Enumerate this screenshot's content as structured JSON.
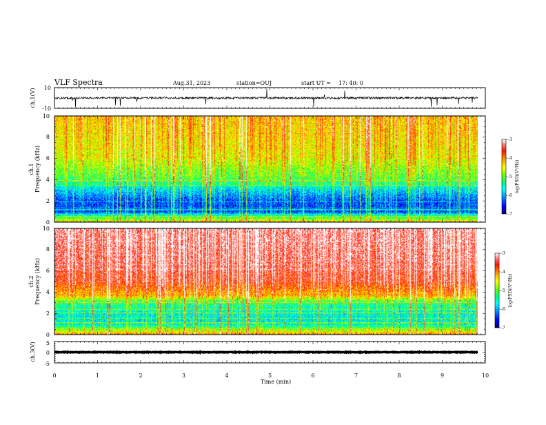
{
  "header": {
    "title": "VLF Spectra",
    "date": "Aug.31, 2023",
    "station": "station=OUJ",
    "start_label": "start UT =",
    "start_time": "17: 40: 0"
  },
  "colors": {
    "frame": "#000000",
    "colormap": [
      "#000080",
      "#0000ff",
      "#00a0ff",
      "#00ffff",
      "#00ff80",
      "#80ff00",
      "#ffff00",
      "#ff8000",
      "#ff0000",
      "#ff8080",
      "#ffffff"
    ]
  },
  "chart_data": [
    {
      "type": "line",
      "name": "waveform-ch1",
      "ylabel": "ch.1(V)",
      "ylim": [
        -10,
        10
      ],
      "yticks": [
        "10",
        "-10"
      ],
      "x_range_min": [
        0,
        10
      ],
      "data_end_min": 9.83,
      "baseline_v": 0,
      "noise_amplitude_v": 2,
      "spike_amplitude_v": 6
    },
    {
      "type": "heatmap",
      "name": "spectrogram-ch1",
      "ylabel_line1": "ch.1",
      "ylabel_line2": "Frequency (kHz)",
      "ylim": [
        0,
        10
      ],
      "yticks": [
        "0",
        "2",
        "4",
        "6",
        "8",
        "10"
      ],
      "x_range_min": [
        0,
        10
      ],
      "data_end_min": 9.83,
      "colorbar": {
        "label": "log(PSD)(V²/Hz)",
        "range": [
          -7,
          -3
        ],
        "ticks": [
          "-3",
          "-4",
          "-5",
          "-6",
          "-7"
        ]
      },
      "band_profile": [
        {
          "f_khz": 0.0,
          "level": -4.6
        },
        {
          "f_khz": 0.4,
          "level": -5.3
        },
        {
          "f_khz": 1.0,
          "level": -6.6
        },
        {
          "f_khz": 2.0,
          "level": -6.5
        },
        {
          "f_khz": 3.0,
          "level": -6.0
        },
        {
          "f_khz": 4.0,
          "level": -5.3
        },
        {
          "f_khz": 6.0,
          "level": -4.8
        },
        {
          "f_khz": 8.0,
          "level": -4.6
        },
        {
          "f_khz": 10.0,
          "level": -4.5
        }
      ]
    },
    {
      "type": "heatmap",
      "name": "spectrogram-ch2",
      "ylabel_line1": "ch.2",
      "ylabel_line2": "Frequency (kHz)",
      "ylim": [
        0,
        10
      ],
      "yticks": [
        "0",
        "2",
        "4",
        "6",
        "8",
        "10"
      ],
      "x_range_min": [
        0,
        10
      ],
      "data_end_min": 9.83,
      "colorbar": {
        "label": "log(PSD)(V²/Hz)",
        "range": [
          -7,
          -3
        ],
        "ticks": [
          "-3",
          "-4",
          "-5",
          "-6",
          "-7"
        ]
      },
      "band_profile": [
        {
          "f_khz": 0.0,
          "level": -4.2
        },
        {
          "f_khz": 0.4,
          "level": -5.0
        },
        {
          "f_khz": 1.0,
          "level": -5.9
        },
        {
          "f_khz": 2.0,
          "level": -5.8
        },
        {
          "f_khz": 3.0,
          "level": -5.5
        },
        {
          "f_khz": 3.6,
          "level": -4.5
        },
        {
          "f_khz": 5.0,
          "level": -3.8
        },
        {
          "f_khz": 7.0,
          "level": -3.6
        },
        {
          "f_khz": 10.0,
          "level": -3.5
        }
      ]
    },
    {
      "type": "line",
      "name": "waveform-ch3",
      "ylabel": "ch.3(V)",
      "ylim": [
        -5,
        5
      ],
      "yticks": [
        "5",
        "0",
        "-5"
      ],
      "x_range_min": [
        0,
        10
      ],
      "data_end_min": 9.83,
      "baseline_v": 0,
      "noise_amplitude_v": 0.3,
      "xlabel": "Time (min)",
      "xticks": [
        "0",
        "1",
        "2",
        "3",
        "4",
        "5",
        "6",
        "7",
        "8",
        "9",
        "10"
      ]
    }
  ]
}
